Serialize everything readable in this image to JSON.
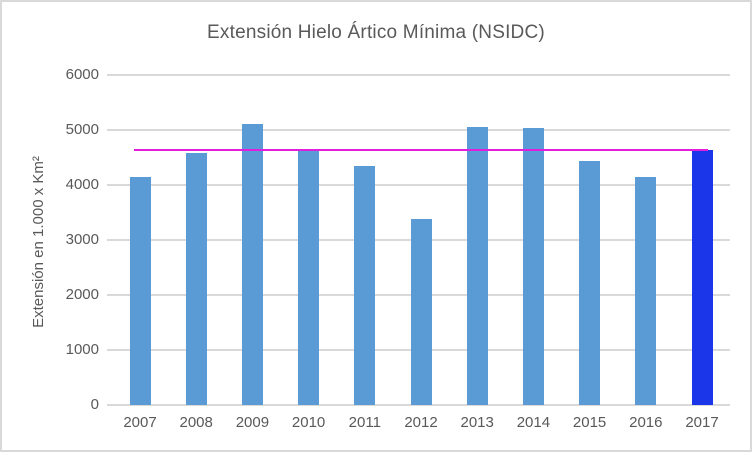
{
  "frame": {
    "background": "#FFFFFF",
    "border_color": "#D9D9D9"
  },
  "chart_data": {
    "type": "bar",
    "title": "Extensión Hielo Ártico Mínima (NSIDC)",
    "ylabel": "Extensión en 1.000 x Km²",
    "xlabel": "",
    "categories": [
      "2007",
      "2008",
      "2009",
      "2010",
      "2011",
      "2012",
      "2013",
      "2014",
      "2015",
      "2016",
      "2017"
    ],
    "values": [
      4150,
      4580,
      5110,
      4615,
      4340,
      3390,
      5050,
      5030,
      4430,
      4140,
      4640
    ],
    "ylim": [
      0,
      6000
    ],
    "yticks": [
      0,
      1000,
      2000,
      3000,
      4000,
      5000,
      6000
    ],
    "grid": "horizontal",
    "legend": "none",
    "highlight_category": "2017",
    "reference_line": {
      "value": 4640,
      "color": "#E01EDC"
    },
    "colors": {
      "bar": "#5B9BD5",
      "highlight_bar": "#1A36E8",
      "grid": "#D9D9D9",
      "axis_text": "#595959",
      "title_text": "#595959"
    }
  }
}
